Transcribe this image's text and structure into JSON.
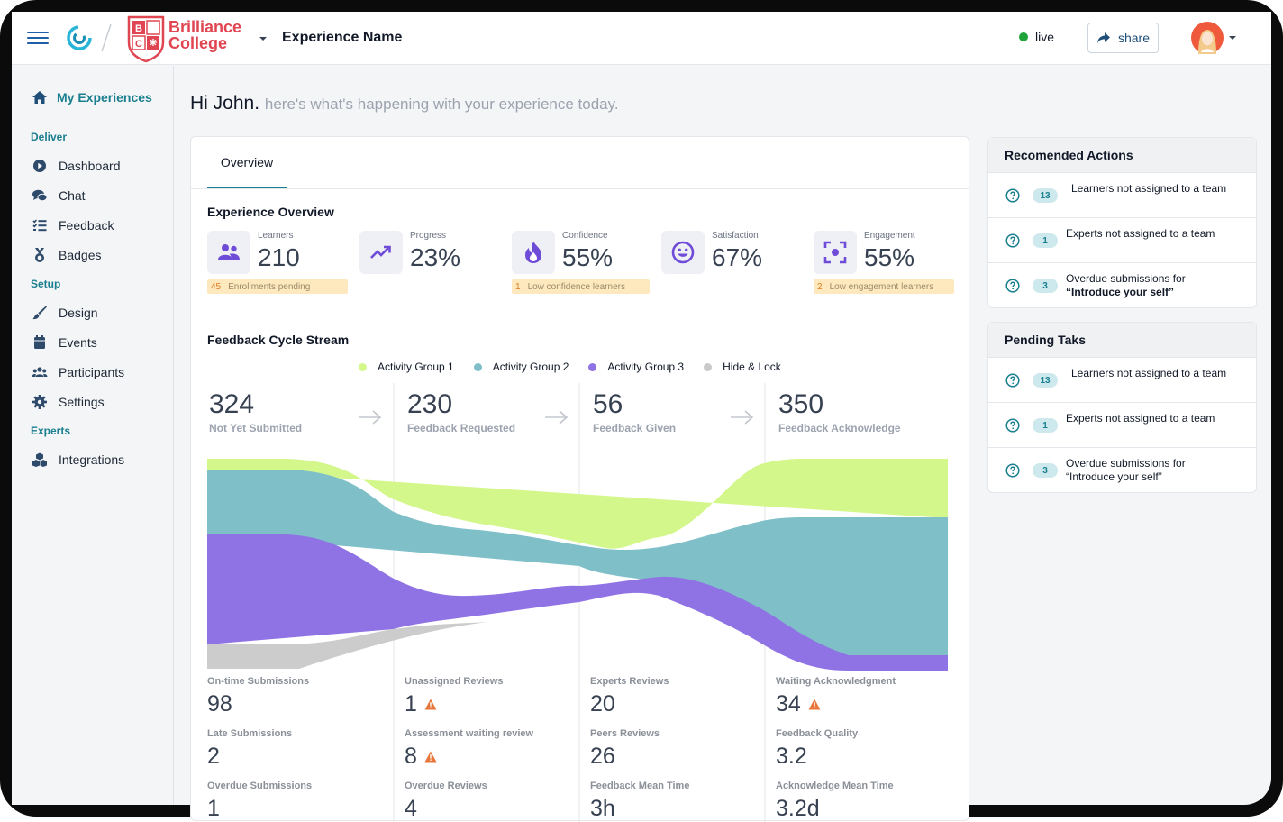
{
  "header": {
    "college_name_line1": "Brilliance",
    "college_name_line2": "College",
    "crest_letters": [
      "B",
      "C"
    ],
    "experience_name": "Experience Name",
    "status_label": "live",
    "share_label": "share"
  },
  "sidebar": {
    "top_item": "My Experiences",
    "sections": {
      "deliver": "Deliver",
      "setup": "Setup",
      "experts": "Experts"
    },
    "items": {
      "dashboard": "Dashboard",
      "chat": "Chat",
      "feedback": "Feedback",
      "badges": "Badges",
      "design": "Design",
      "events": "Events",
      "participants": "Participants",
      "settings": "Settings",
      "integrations": "Integrations"
    }
  },
  "greeting": {
    "hello": "Hi John.",
    "subtitle": "here's what's happening with your experience today."
  },
  "main": {
    "tab": "Overview",
    "overview_title": "Experience Overview",
    "stream_title": "Feedback Cycle Stream"
  },
  "metrics": [
    {
      "label": "Learners",
      "value": "210",
      "alert_count": "45",
      "alert_text": "Enrollments pending",
      "icon": "people-icon"
    },
    {
      "label": "Progress",
      "value": "23%",
      "icon": "trending-up-icon"
    },
    {
      "label": "Confidence",
      "value": "55%",
      "alert_count": "1",
      "alert_text": "Low confidence learners",
      "icon": "flame-icon"
    },
    {
      "label": "Satisfaction",
      "value": "67%",
      "icon": "smile-icon"
    },
    {
      "label": "Engagement",
      "value": "55%",
      "alert_count": "2",
      "alert_text": "Low engagement learners",
      "icon": "focus-icon"
    }
  ],
  "legend": [
    {
      "name": "Activity Group 1",
      "color": "#d4f78c"
    },
    {
      "name": "Activity Group 2",
      "color": "#7fbfc8"
    },
    {
      "name": "Activity Group 3",
      "color": "#8f72e4"
    },
    {
      "name": "Hide & Lock",
      "color": "#c9c9c9"
    }
  ],
  "stages": [
    {
      "value": "324",
      "label": "Not Yet Submitted"
    },
    {
      "value": "230",
      "label": "Feedback Requested"
    },
    {
      "value": "56",
      "label": "Feedback Given"
    },
    {
      "value": "350",
      "label": "Feedback Acknowledge"
    }
  ],
  "stats": {
    "col1": [
      {
        "label": "On-time Submissions",
        "value": "98"
      },
      {
        "label": "Late Submissions",
        "value": "2"
      },
      {
        "label": "Overdue Submissions",
        "value": "1"
      }
    ],
    "col2": [
      {
        "label": "Unassigned Reviews",
        "value": "1",
        "warning": true
      },
      {
        "label": "Assessment waiting review",
        "value": "8",
        "warning": true
      },
      {
        "label": "Overdue Reviews",
        "value": "4"
      }
    ],
    "col3": [
      {
        "label": "Experts Reviews",
        "value": "20"
      },
      {
        "label": "Peers Reviews",
        "value": "26"
      },
      {
        "label": "Feedback Mean Time",
        "value": "3h"
      }
    ],
    "col4": [
      {
        "label": "Waiting Acknowledgment",
        "value": "34",
        "warning": true
      },
      {
        "label": "Feedback Quality",
        "value": "3.2"
      },
      {
        "label": "Acknowledge Mean Time",
        "value": "3.2d"
      }
    ]
  },
  "recommended": {
    "title": "Recomended Actions",
    "rows": [
      {
        "count": "13",
        "text": "Learners not assigned to a team"
      },
      {
        "count": "1",
        "text": "Experts not assigned to a team"
      },
      {
        "count": "3",
        "text_prefix": "Overdue submissions for",
        "text_strong": "“Introduce your self”"
      }
    ]
  },
  "pending": {
    "title": "Pending Taks",
    "rows": [
      {
        "count": "13",
        "text": "Learners not assigned to a team"
      },
      {
        "count": "1",
        "text": "Experts not assigned to a team"
      },
      {
        "count": "3",
        "text_prefix": "Overdue submissions for",
        "text_plain": "“Introduce your self”"
      }
    ]
  },
  "colors": {
    "accent": "#1a7f8e",
    "brand_red": "#e04552",
    "live_green": "#1ea33a",
    "warning": "#e8763a"
  }
}
